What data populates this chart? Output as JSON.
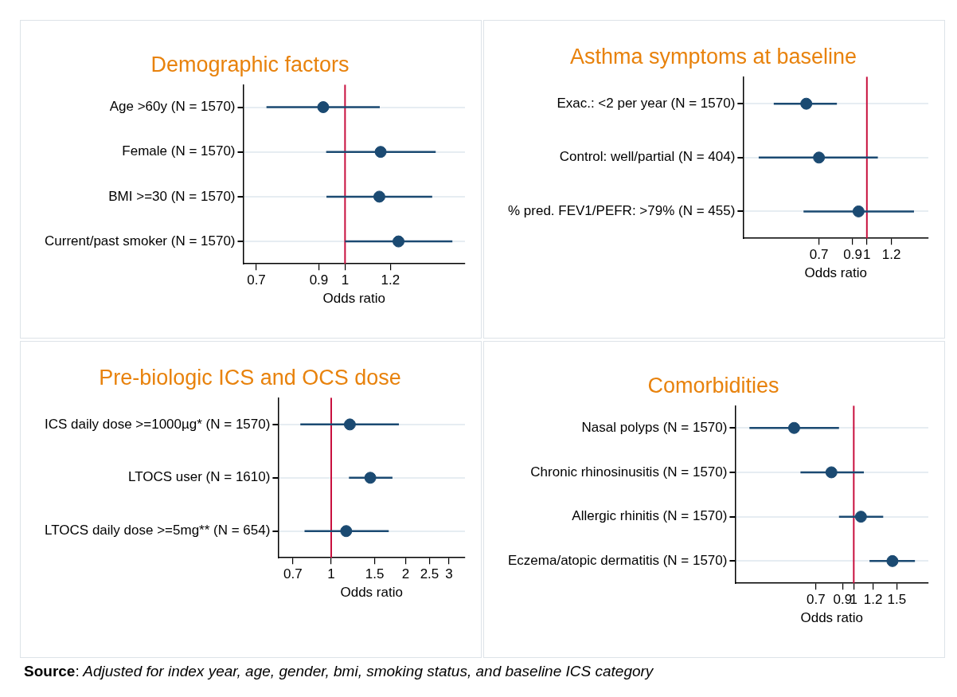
{
  "chart_data": [
    {
      "type": "scatter",
      "title": "Demographic factors",
      "xlabel": "Odds ratio",
      "orientation": "horizontal",
      "log": "x",
      "grid": "y",
      "legend": false,
      "marker": "circle",
      "categories": [
        "Age >60y (N = 1570)",
        "Female (N = 1570)",
        "BMI >=30 (N = 1570)",
        "Current/past smoker (N = 1570)"
      ],
      "color": "#1b4a72",
      "values": [
        0.916,
        1.154,
        1.148,
        1.24
      ],
      "errors": [
        [
          0.729,
          1.15
        ],
        [
          0.927,
          1.44
        ],
        [
          0.928,
          1.42
        ],
        [
          1.0,
          1.54
        ]
      ],
      "xlim": [
        0.664,
        1.62
      ],
      "xticks": [
        0.7,
        0.9,
        1,
        1.2
      ],
      "ref_lines": [
        {
          "axis": "x",
          "value": 1,
          "color": "#c8103e"
        }
      ],
      "annotations": [
        "Source: Adjusted for index year, age, gender, bmi, smoking status, and baseline ICS category"
      ]
    },
    {
      "type": "scatter",
      "title": "Asthma symptoms at baseline",
      "xlabel": "Odds ratio",
      "orientation": "horizontal",
      "log": "x",
      "grid": "y",
      "legend": false,
      "marker": "circle",
      "categories": [
        "Exac.: <2 per year (N = 1570)",
        "Control: well/partial (N = 404)",
        "% pred. FEV1/PEFR: >79% (N = 455)"
      ],
      "color": "#1b4a72",
      "values": [
        0.637,
        0.7,
        0.94
      ],
      "errors": [
        [
          0.5,
          0.8
        ],
        [
          0.447,
          1.085
        ],
        [
          0.624,
          1.42
        ]
      ],
      "xlim": [
        0.398,
        1.58
      ],
      "xticks": [
        0.7,
        0.9,
        1,
        1.2
      ],
      "ref_lines": [
        {
          "axis": "x",
          "value": 1,
          "color": "#c8103e"
        }
      ]
    },
    {
      "type": "scatter",
      "title": "Pre-biologic ICS and OCS dose",
      "xlabel": "Odds ratio",
      "orientation": "horizontal",
      "log": "x",
      "grid": "y",
      "legend": false,
      "marker": "circle",
      "categories": [
        "ICS daily dose >=1000µg* (N = 1570)",
        "LTOCS user (N = 1610)",
        "LTOCS daily dose >=5mg** (N = 654)"
      ],
      "color": "#1b4a72",
      "values": [
        1.19,
        1.44,
        1.15
      ],
      "errors": [
        [
          0.75,
          1.88
        ],
        [
          1.18,
          1.77
        ],
        [
          0.78,
          1.71
        ]
      ],
      "xlim": [
        0.61,
        3.48
      ],
      "xticks": [
        0.7,
        1,
        1.5,
        2,
        2.5,
        3
      ],
      "ref_lines": [
        {
          "axis": "x",
          "value": 1,
          "color": "#c8103e"
        }
      ]
    },
    {
      "type": "scatter",
      "title": "Comorbidities",
      "xlabel": "Odds ratio",
      "orientation": "horizontal",
      "log": "x",
      "grid": "y",
      "legend": false,
      "marker": "circle",
      "categories": [
        "Nasal polyps (N = 1570)",
        "Chronic rhinosinusitis (N = 1570)",
        "Allergic rhinitis (N = 1570)",
        "Eczema/atopic dermatitis (N = 1570)"
      ],
      "color": "#1b4a72",
      "values": [
        0.57,
        0.81,
        1.07,
        1.44
      ],
      "errors": [
        [
          0.374,
          0.87
        ],
        [
          0.605,
          1.1
        ],
        [
          0.87,
          1.32
        ],
        [
          1.16,
          1.78
        ]
      ],
      "xlim": [
        0.327,
        2.02
      ],
      "xticks": [
        0.7,
        0.9,
        1,
        1.2,
        1.5
      ],
      "ref_lines": [
        {
          "axis": "x",
          "value": 1,
          "color": "#c8103e"
        }
      ]
    }
  ]
}
